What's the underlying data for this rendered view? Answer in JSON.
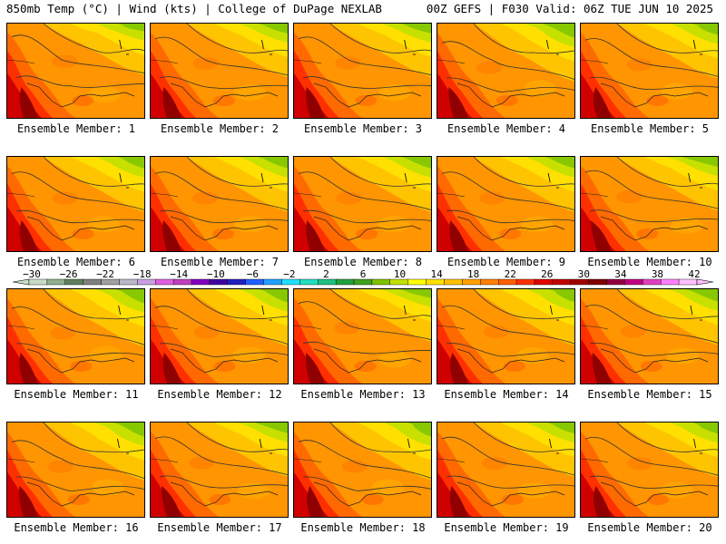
{
  "header": {
    "left_title": "850mb Temp (°C) | Wind (kts) | College of DuPage NEXLAB",
    "right_title": "00Z GEFS | F030 Valid: 06Z TUE JUN 10 2025"
  },
  "panels": [
    {
      "label": "Ensemble Member: 1"
    },
    {
      "label": "Ensemble Member: 2"
    },
    {
      "label": "Ensemble Member: 3"
    },
    {
      "label": "Ensemble Member: 4"
    },
    {
      "label": "Ensemble Member: 5"
    },
    {
      "label": "Ensemble Member: 6"
    },
    {
      "label": "Ensemble Member: 7"
    },
    {
      "label": "Ensemble Member: 8"
    },
    {
      "label": "Ensemble Member: 9"
    },
    {
      "label": "Ensemble Member: 10"
    },
    {
      "label": "Ensemble Member: 11"
    },
    {
      "label": "Ensemble Member: 12"
    },
    {
      "label": "Ensemble Member: 13"
    },
    {
      "label": "Ensemble Member: 14"
    },
    {
      "label": "Ensemble Member: 15"
    },
    {
      "label": "Ensemble Member: 16"
    },
    {
      "label": "Ensemble Member: 17"
    },
    {
      "label": "Ensemble Member: 18"
    },
    {
      "label": "Ensemble Member: 19"
    },
    {
      "label": "Ensemble Member: 20"
    }
  ],
  "colorbar": {
    "tick_labels": [
      "−30",
      "−26",
      "−22",
      "−18",
      "−14",
      "−10",
      "−6",
      "−2",
      "2",
      "6",
      "10",
      "14",
      "18",
      "22",
      "26",
      "30",
      "34",
      "38",
      "42"
    ],
    "colors": [
      "#c8ddc8",
      "#8fae8f",
      "#5f7f5f",
      "#808080",
      "#a0a0a0",
      "#b8b8c8",
      "#c8a0e0",
      "#e060e0",
      "#c040c0",
      "#8000c0",
      "#4000a0",
      "#2020c0",
      "#2060ff",
      "#20a0ff",
      "#20e0ff",
      "#20e0c0",
      "#20c080",
      "#20a040",
      "#40a020",
      "#80c000",
      "#c0e000",
      "#ffff00",
      "#ffe000",
      "#ffc000",
      "#ffa000",
      "#ff8000",
      "#ff6000",
      "#ff3000",
      "#e00000",
      "#c00000",
      "#a00000",
      "#800000",
      "#900040",
      "#c00080",
      "#e040c0",
      "#ff80ff",
      "#ffc0ff"
    ]
  }
}
